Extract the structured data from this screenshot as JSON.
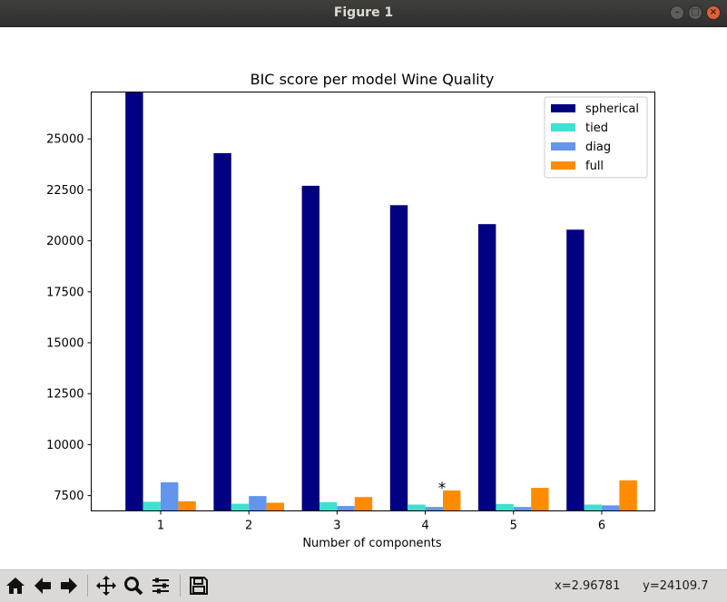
{
  "window": {
    "title": "Figure 1"
  },
  "toolbar": {
    "buttons": [
      "home-icon",
      "back-icon",
      "forward-icon",
      "pan-icon",
      "zoom-icon",
      "configure-subplots-icon",
      "save-icon"
    ],
    "coords_x": "x=2.96781",
    "coords_y": "y=24109.7"
  },
  "chart_data": {
    "type": "bar",
    "title": "BIC score per model Wine Quality",
    "xlabel": "Number of components",
    "ylabel": "",
    "categories": [
      "1",
      "2",
      "3",
      "4",
      "5",
      "6"
    ],
    "ylim": [
      6750,
      27300
    ],
    "yticks": [
      7500,
      10000,
      12500,
      15000,
      17500,
      20000,
      22500,
      25000
    ],
    "series": [
      {
        "name": "spherical",
        "color": "#000080",
        "values": [
          27300,
          24300,
          22700,
          21750,
          20820,
          20550
        ]
      },
      {
        "name": "tied",
        "color": "#40e0d0",
        "values": [
          7200,
          7100,
          7180,
          7060,
          7090,
          7060
        ]
      },
      {
        "name": "diag",
        "color": "#6495ed",
        "values": [
          8150,
          7480,
          6990,
          6940,
          6940,
          7020
        ]
      },
      {
        "name": "full",
        "color": "#ff8c00",
        "values": [
          7220,
          7150,
          7430,
          7750,
          7880,
          8250
        ]
      }
    ],
    "legend_position": "top-right",
    "annotations": [
      {
        "text": "*",
        "category": "4"
      }
    ]
  }
}
